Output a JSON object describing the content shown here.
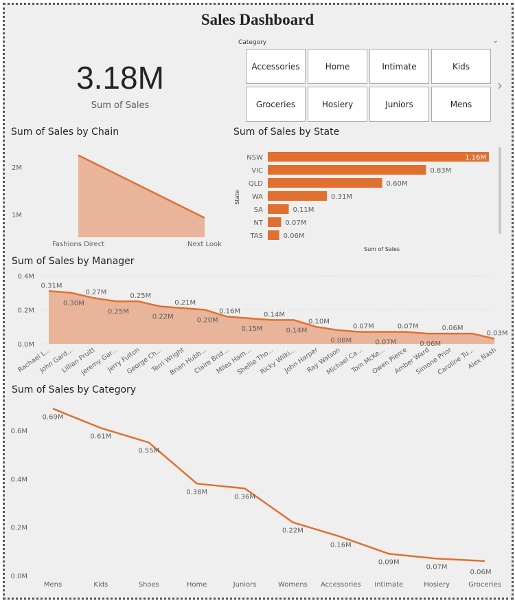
{
  "title": "Sales Dashboard",
  "kpi": {
    "value": "3.18M",
    "label": "Sum of Sales"
  },
  "slicer": {
    "label": "Category",
    "tiles": [
      "Accessories",
      "Home",
      "Intimate",
      "Kids",
      "Groceries",
      "Hosiery",
      "Juniors",
      "Mens"
    ],
    "chevron_icon": "chevron-down-icon",
    "next_icon": "chevron-right-icon"
  },
  "colors": {
    "accent": "#e07030",
    "area_fill": "#e8b49a",
    "background": "#efefef"
  },
  "chart_data": [
    {
      "type": "area",
      "title": "Sum of Sales by Chain",
      "categories": [
        "Fashions Direct",
        "Next Look"
      ],
      "values": [
        2.25,
        0.93
      ],
      "unit": "M",
      "yticks": [
        "1M",
        "2M"
      ],
      "ytick_values": [
        1,
        2
      ],
      "grid": false
    },
    {
      "type": "bar",
      "orientation": "horizontal",
      "title": "Sum of Sales by State",
      "xlabel": "Sum of Sales",
      "ylabel": "State",
      "categories": [
        "NSW",
        "VIC",
        "QLD",
        "WA",
        "SA",
        "NT",
        "TAS"
      ],
      "values": [
        1.16,
        0.83,
        0.6,
        0.31,
        0.11,
        0.07,
        0.06
      ],
      "data_labels": [
        "1.16M",
        "0.83M",
        "0.60M",
        "0.31M",
        "0.11M",
        "0.07M",
        "0.06M"
      ]
    },
    {
      "type": "area",
      "title": "Sum of Sales by Manager",
      "categories": [
        "Rachael L...",
        "John Gard...",
        "Lillian Pruitt",
        "Jeremy Gar...",
        "Jerry Fulton",
        "George Ch...",
        "Terri Wright",
        "Brian Hubb...",
        "Claire Brid...",
        "Miles Ham...",
        "Shellie Tho...",
        "Ricky Wilki...",
        "John Harper",
        "Ray Watson",
        "Michael Ca...",
        "Tom McKe...",
        "Owen Pierce",
        "Amber Ward",
        "Simone Prior",
        "Caroline Tu...",
        "Alex Nash"
      ],
      "values": [
        0.31,
        0.3,
        0.27,
        0.25,
        0.25,
        0.22,
        0.21,
        0.2,
        0.16,
        0.15,
        0.14,
        0.14,
        0.1,
        0.08,
        0.07,
        0.07,
        0.07,
        0.06,
        0.06,
        0.06,
        0.03
      ],
      "data_labels": [
        "0.31M",
        "0.30M",
        "0.27M",
        "0.25M",
        "0.25M",
        "0.22M",
        "0.21M",
        "0.20M",
        "0.16M",
        "0.15M",
        "0.14M",
        "0.14M",
        "0.10M",
        "0.08M",
        "0.07M",
        "0.07M",
        "0.07M",
        "0.06M",
        "0.06M",
        "",
        "0.03M"
      ],
      "yticks": [
        "0.0M",
        "0.2M",
        "0.4M"
      ],
      "ytick_values": [
        0,
        0.2,
        0.4
      ],
      "ylim": [
        0,
        0.4
      ],
      "grid": true
    },
    {
      "type": "line",
      "title": "Sum of Sales by Category",
      "categories": [
        "Mens",
        "Kids",
        "Shoes",
        "Home",
        "Juniors",
        "Womens",
        "Accessories",
        "Intimate",
        "Hosiery",
        "Groceries"
      ],
      "values": [
        0.69,
        0.61,
        0.55,
        0.38,
        0.36,
        0.22,
        0.16,
        0.09,
        0.07,
        0.06
      ],
      "data_labels": [
        "0.69M",
        "0.61M",
        "0.55M",
        "0.38M",
        "0.36M",
        "0.22M",
        "0.16M",
        "0.09M",
        "0.07M",
        "0.06M"
      ],
      "yticks": [
        "0.0M",
        "0.2M",
        "0.4M",
        "0.6M"
      ],
      "ytick_values": [
        0,
        0.2,
        0.4,
        0.6
      ],
      "ylim": [
        0,
        0.6
      ],
      "grid": false
    }
  ]
}
